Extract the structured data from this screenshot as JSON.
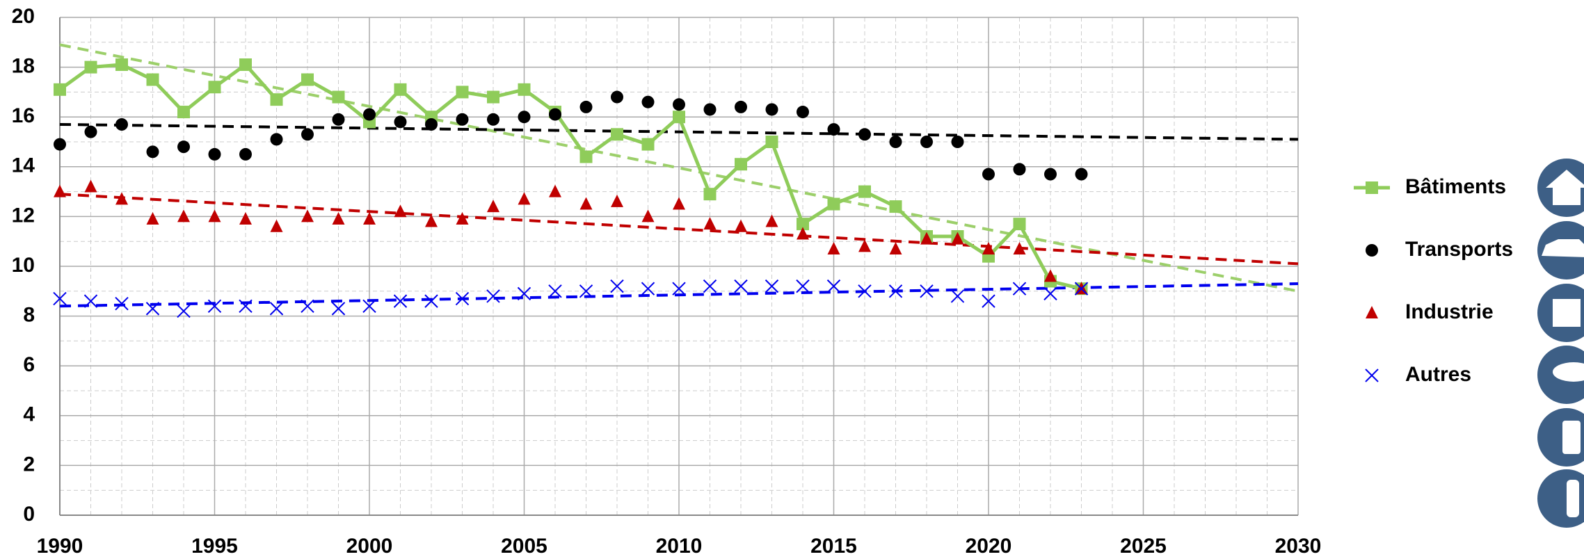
{
  "chart_data": {
    "type": "line",
    "x": [
      1990,
      1991,
      1992,
      1993,
      1994,
      1995,
      1996,
      1997,
      1998,
      1999,
      2000,
      2001,
      2002,
      2003,
      2004,
      2005,
      2006,
      2007,
      2008,
      2009,
      2010,
      2011,
      2012,
      2013,
      2014,
      2015,
      2016,
      2017,
      2018,
      2019,
      2020,
      2021,
      2022,
      2023
    ],
    "xlim": [
      1990,
      2030
    ],
    "xticks": [
      1990,
      1995,
      2000,
      2005,
      2010,
      2015,
      2020,
      2025,
      2030
    ],
    "ylim": [
      0,
      20
    ],
    "yticks": [
      0,
      2,
      4,
      6,
      8,
      10,
      12,
      14,
      16,
      18,
      20
    ],
    "grid": true,
    "trend_x": [
      1990,
      2030
    ],
    "series": [
      {
        "name": "Bâtiments",
        "color": "#8fcc5a",
        "marker": "square",
        "line": true,
        "values": [
          17.1,
          18.0,
          18.1,
          17.5,
          16.2,
          17.2,
          18.1,
          16.7,
          17.5,
          16.8,
          15.8,
          17.1,
          16.0,
          17.0,
          16.8,
          17.1,
          16.2,
          14.4,
          15.3,
          14.9,
          16.0,
          12.9,
          14.1,
          15.0,
          11.7,
          12.5,
          13.0,
          12.4,
          11.2,
          11.2,
          10.4,
          11.7,
          9.4,
          9.1
        ],
        "trend": [
          18.9,
          9.0
        ]
      },
      {
        "name": "Transports",
        "color": "#000000",
        "marker": "circle",
        "line": false,
        "values": [
          14.9,
          15.4,
          15.7,
          14.6,
          14.8,
          14.5,
          14.5,
          15.1,
          15.3,
          15.9,
          16.1,
          15.8,
          15.7,
          15.9,
          15.9,
          16.0,
          16.1,
          16.4,
          16.8,
          16.6,
          16.5,
          16.3,
          16.4,
          16.3,
          16.2,
          15.5,
          15.3,
          15.0,
          15.0,
          15.0,
          13.7,
          13.9,
          13.7,
          13.7
        ],
        "trend": [
          15.7,
          15.1
        ]
      },
      {
        "name": "Industrie",
        "color": "#c00000",
        "marker": "triangle",
        "line": false,
        "values": [
          13.0,
          13.2,
          12.7,
          11.9,
          12.0,
          12.0,
          11.9,
          11.6,
          12.0,
          11.9,
          11.9,
          12.2,
          11.8,
          11.9,
          12.4,
          12.7,
          13.0,
          12.5,
          12.6,
          12.0,
          12.5,
          11.7,
          11.6,
          11.8,
          11.3,
          10.7,
          10.8,
          10.7,
          11.1,
          11.1,
          10.7,
          10.7,
          9.6,
          9.1
        ],
        "trend": [
          12.9,
          10.1
        ]
      },
      {
        "name": "Autres",
        "color": "#0000ee",
        "marker": "cross",
        "line": false,
        "values": [
          8.7,
          8.6,
          8.5,
          8.3,
          8.2,
          8.4,
          8.4,
          8.3,
          8.4,
          8.3,
          8.4,
          8.6,
          8.6,
          8.7,
          8.8,
          8.9,
          9.0,
          9.0,
          9.2,
          9.1,
          9.1,
          9.2,
          9.2,
          9.2,
          9.2,
          9.2,
          9.0,
          9.0,
          9.0,
          8.8,
          8.6,
          9.1,
          8.9,
          9.1
        ],
        "trend": [
          8.4,
          9.3
        ]
      }
    ]
  }
}
